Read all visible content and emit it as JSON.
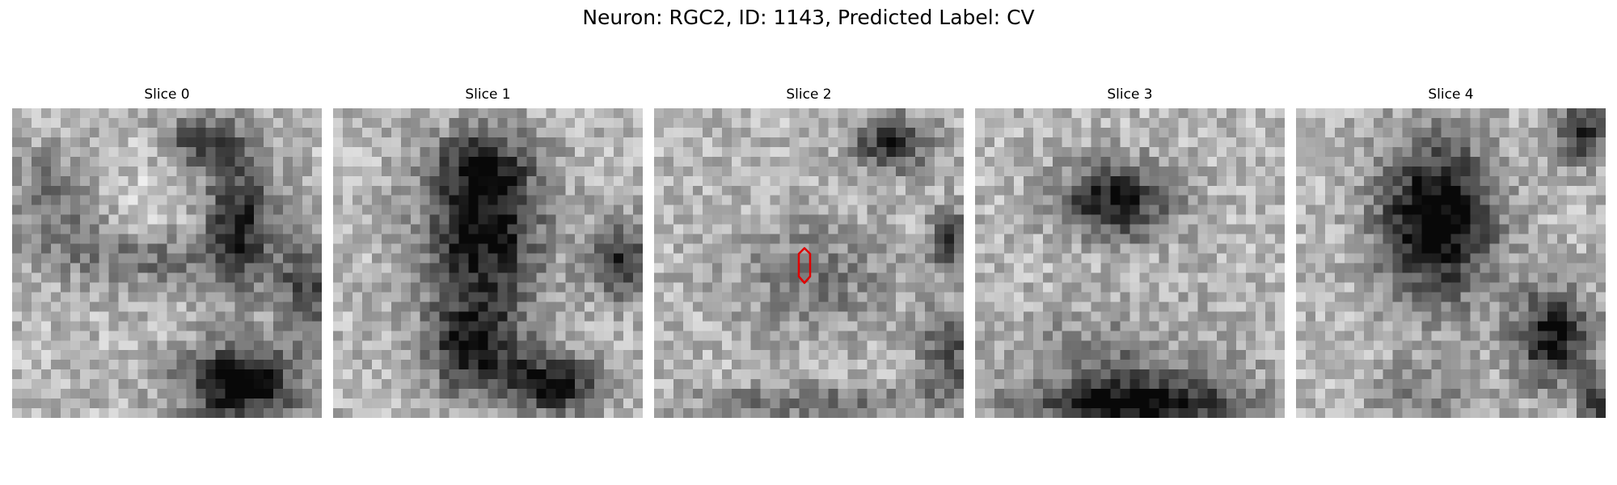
{
  "figure": {
    "title": "Neuron: RGC2, ID: 1143, Predicted Label: CV"
  },
  "panels": [
    {
      "title": "Slice 0"
    },
    {
      "title": "Slice 1"
    },
    {
      "title": "Slice 2"
    },
    {
      "title": "Slice 3"
    },
    {
      "title": "Slice 4"
    }
  ],
  "colors": {
    "contour": "#e00000",
    "colormap": "gray"
  }
}
